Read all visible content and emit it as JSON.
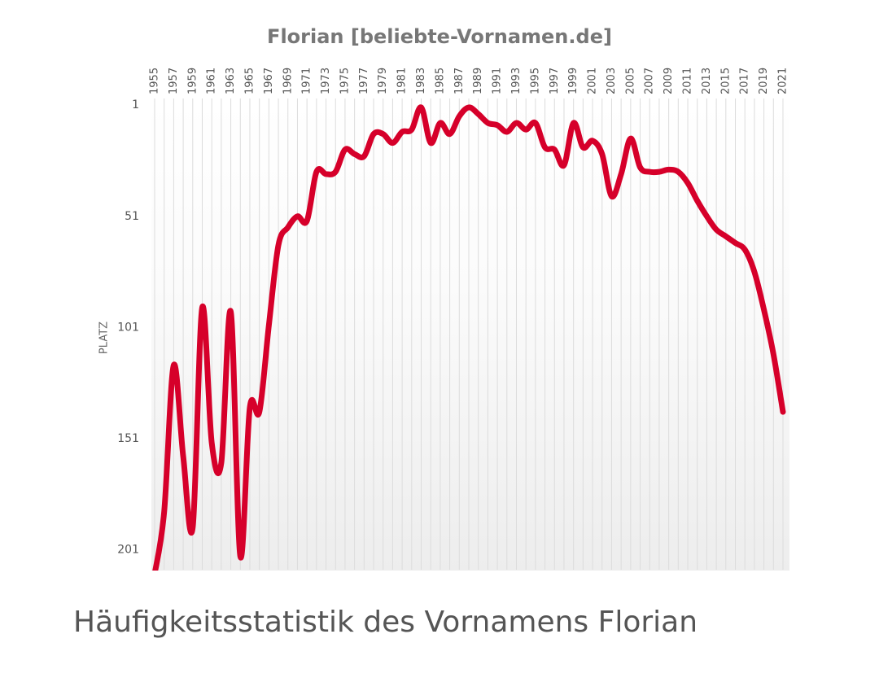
{
  "chart_data": {
    "type": "line",
    "title": "Florian [beliebte-Vornamen.de]",
    "y_label": "PLATZ",
    "caption": "Häufigkeitsstatistik des Vornamens Florian",
    "x": [
      1955,
      1956,
      1957,
      1958,
      1959,
      1960,
      1961,
      1962,
      1963,
      1964,
      1965,
      1966,
      1967,
      1968,
      1969,
      1970,
      1971,
      1972,
      1973,
      1974,
      1975,
      1976,
      1977,
      1978,
      1979,
      1980,
      1981,
      1982,
      1983,
      1984,
      1985,
      1986,
      1987,
      1988,
      1989,
      1990,
      1991,
      1992,
      1993,
      1994,
      1995,
      1996,
      1997,
      1998,
      1999,
      2000,
      2001,
      2002,
      2003,
      2004,
      2005,
      2006,
      2007,
      2008,
      2009,
      2010,
      2011,
      2012,
      2013,
      2014,
      2015,
      2016,
      2017,
      2018,
      2019,
      2020,
      2021
    ],
    "series": [
      {
        "name": "Florian",
        "color": "#d6002a",
        "values": [
          212,
          184,
          118,
          159,
          191,
          92,
          153,
          162,
          94,
          204,
          137,
          139,
          100,
          64,
          56,
          51,
          53,
          31,
          32,
          31,
          21,
          23,
          24,
          14,
          14,
          18,
          13,
          12,
          2,
          18,
          9,
          14,
          6,
          2,
          5,
          9,
          10,
          13,
          9,
          12,
          9,
          20,
          21,
          28,
          9,
          20,
          17,
          23,
          42,
          32,
          16,
          29,
          31,
          31,
          30,
          31,
          36,
          44,
          51,
          57,
          60,
          63,
          66,
          76,
          93,
          113,
          139
        ]
      }
    ],
    "xlim": [
      1955,
      2021
    ],
    "xticks": [
      1955,
      1957,
      1959,
      1961,
      1963,
      1965,
      1967,
      1969,
      1971,
      1973,
      1975,
      1977,
      1979,
      1981,
      1983,
      1985,
      1987,
      1989,
      1991,
      1993,
      1995,
      1997,
      1999,
      2001,
      2003,
      2005,
      2007,
      2009,
      2011,
      2013,
      2015,
      2017,
      2019,
      2021
    ],
    "ylim": [
      -2,
      210
    ],
    "yticks": [
      1,
      51,
      101,
      151,
      201
    ],
    "y_inverted": true,
    "grid": true
  }
}
